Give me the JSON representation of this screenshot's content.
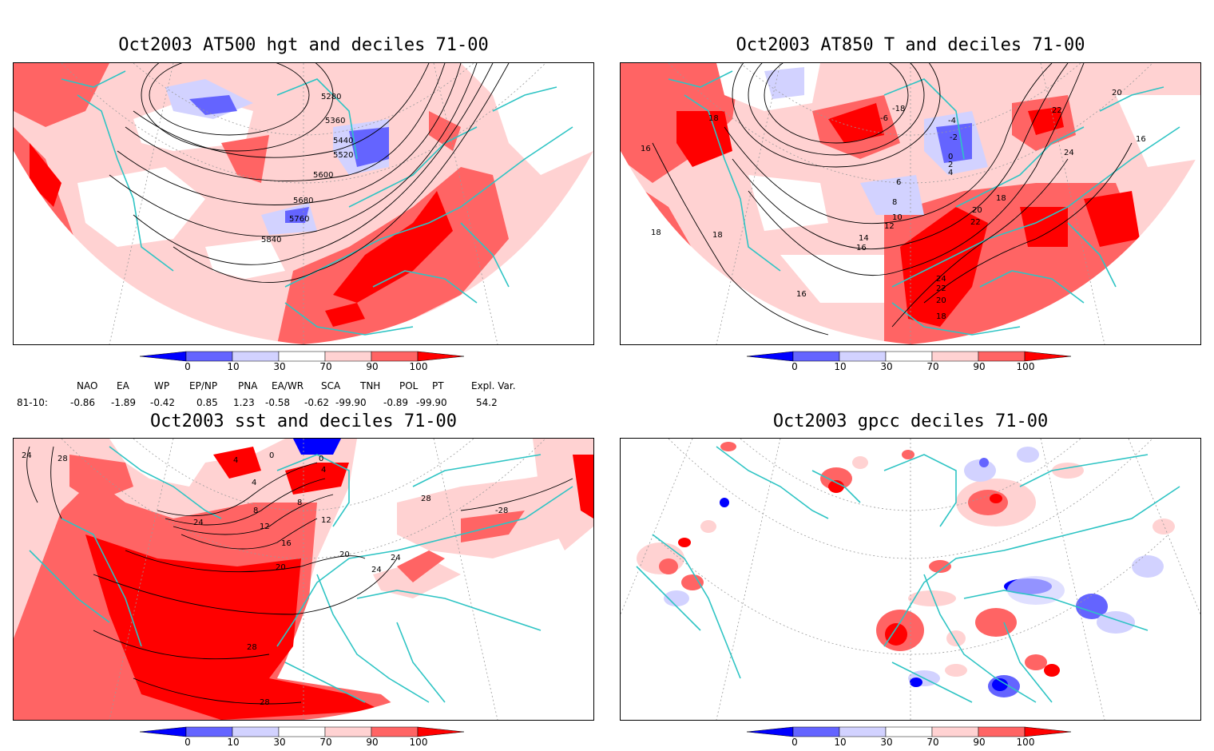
{
  "panels": [
    {
      "title": "Oct2003 AT500 hgt and deciles 71-00",
      "contour_labels": [
        "5280",
        "5360",
        "5440",
        "5520",
        "5600",
        "5680",
        "5760",
        "5840"
      ]
    },
    {
      "title": "Oct2003 AT850 T and deciles 71-00",
      "contour_labels": [
        "18",
        "20",
        "22",
        "24",
        "16",
        "18",
        "-6",
        "-4",
        "-2",
        "0",
        "2",
        "4",
        "6",
        "8",
        "10",
        "12",
        "14",
        "16",
        "18",
        "20",
        "22",
        "24",
        "22",
        "20",
        "18",
        "16",
        "-18",
        "16",
        "18"
      ]
    },
    {
      "title": "Oct2003 sst and deciles 71-00",
      "contour_labels": [
        "24",
        "28",
        "0",
        "0",
        "4",
        "4",
        "4",
        "8",
        "8",
        "12",
        "12",
        "16",
        "20",
        "20",
        "24",
        "24",
        "24",
        "28",
        "28",
        "-28",
        "28"
      ]
    },
    {
      "title": "Oct2003 gpcc deciles 71-00",
      "contour_labels": []
    }
  ],
  "colorbar": {
    "ticks": [
      "0",
      "10",
      "30",
      "70",
      "90",
      "100"
    ],
    "colors": {
      "below10": "#0000ff",
      "d10_30": "#6464ff",
      "d30_50": "#d2d2ff",
      "d50_70": "#ffffff",
      "d70_90": "#ffd2d2",
      "d90_100": "#ff6464",
      "above100": "#ff0000"
    }
  },
  "indices": {
    "headers": [
      "NAO",
      "EA",
      "WP",
      "EP/NP",
      "PNA",
      "EA/WR",
      "SCA",
      "TNH",
      "POL",
      "PT",
      "Expl. Var."
    ],
    "row_label": "81-10:",
    "values": [
      "-0.86",
      "-1.89",
      "-0.42",
      "0.85",
      "1.23",
      "-0.58",
      "-0.62",
      "-99.90",
      "-0.89",
      "-99.90",
      "54.2"
    ]
  },
  "map_colors": {
    "coast": "#2ec4c4",
    "contour": "#000000",
    "grid": "#9a9a9a"
  }
}
